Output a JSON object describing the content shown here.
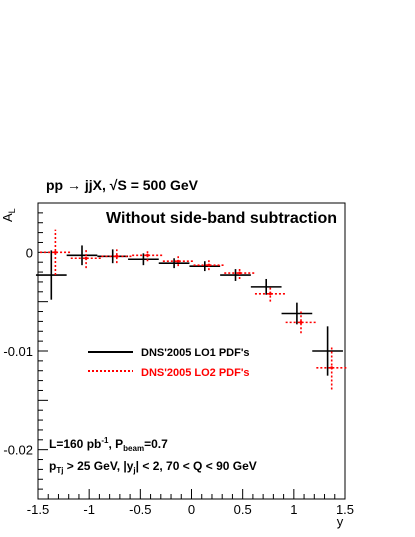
{
  "chart_data": {
    "type": "scatter",
    "process_label": "pp → jjX, √S = 500 GeV",
    "title": "Without side-band subtraction",
    "ylabel": "A_L",
    "xlabel": "y",
    "xlim": [
      -1.5,
      1.5
    ],
    "ylim": [
      -0.025,
      0.005
    ],
    "x_ticks": [
      -1.5,
      -1,
      -0.5,
      0,
      0.5,
      1,
      1.5
    ],
    "x_tick_labels": [
      "-1.5",
      "-1",
      "-0.5",
      "0",
      "0.5",
      "1",
      "1.5"
    ],
    "y_ticks": [
      0,
      -0.01,
      -0.02
    ],
    "y_tick_labels": [
      "0",
      "-0.01",
      "-0.02"
    ],
    "annotations": {
      "line1": "L=160 pb⁻¹, P_beam=0.7",
      "line2": "p_Tj > 25 GeV, |y_j| < 2, 70 < Q < 90 GeV"
    },
    "legend_placement": "center-left",
    "series": [
      {
        "name": "DNS'2005 LO1 PDF's",
        "color": "#000000",
        "style": "solid",
        "points": [
          {
            "x": -1.35,
            "xerr": 0.15,
            "y": -0.0023,
            "yerr": 0.0025
          },
          {
            "x": -1.05,
            "xerr": 0.15,
            "y": -0.0003,
            "yerr": 0.001
          },
          {
            "x": -0.75,
            "xerr": 0.15,
            "y": -0.0004,
            "yerr": 0.0007
          },
          {
            "x": -0.45,
            "xerr": 0.15,
            "y": -0.0007,
            "yerr": 0.0006
          },
          {
            "x": -0.15,
            "xerr": 0.15,
            "y": -0.0011,
            "yerr": 0.0005
          },
          {
            "x": 0.15,
            "xerr": 0.15,
            "y": -0.0014,
            "yerr": 0.0005
          },
          {
            "x": 0.45,
            "xerr": 0.15,
            "y": -0.0023,
            "yerr": 0.0006
          },
          {
            "x": 0.75,
            "xerr": 0.15,
            "y": -0.0035,
            "yerr": 0.0008
          },
          {
            "x": 1.05,
            "xerr": 0.15,
            "y": -0.0062,
            "yerr": 0.0011
          },
          {
            "x": 1.35,
            "xerr": 0.15,
            "y": -0.01,
            "yerr": 0.0025
          }
        ]
      },
      {
        "name": "DNS'2005 LO2 PDF's",
        "color": "#ff0000",
        "style": "dotted",
        "points": [
          {
            "x": -1.35,
            "xerr": 0.15,
            "y": 0.0,
            "yerr": 0.0023
          },
          {
            "x": -1.05,
            "xerr": 0.15,
            "y": -0.0006,
            "yerr": 0.001
          },
          {
            "x": -0.75,
            "xerr": 0.15,
            "y": -0.0004,
            "yerr": 0.0007
          },
          {
            "x": -0.45,
            "xerr": 0.15,
            "y": -0.0003,
            "yerr": 0.0006
          },
          {
            "x": -0.15,
            "xerr": 0.15,
            "y": -0.0009,
            "yerr": 0.0005
          },
          {
            "x": 0.15,
            "xerr": 0.15,
            "y": -0.0013,
            "yerr": 0.0005
          },
          {
            "x": 0.45,
            "xerr": 0.15,
            "y": -0.0021,
            "yerr": 0.0006
          },
          {
            "x": 0.75,
            "xerr": 0.15,
            "y": -0.0042,
            "yerr": 0.0008
          },
          {
            "x": 1.05,
            "xerr": 0.15,
            "y": -0.0071,
            "yerr": 0.0011
          },
          {
            "x": 1.35,
            "xerr": 0.15,
            "y": -0.0117,
            "yerr": 0.0022
          }
        ]
      }
    ]
  }
}
